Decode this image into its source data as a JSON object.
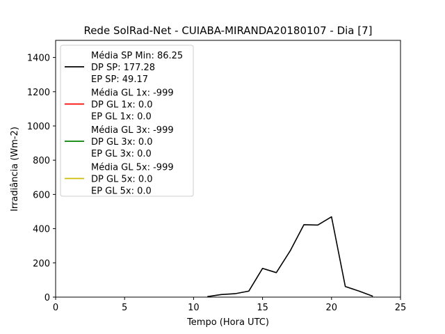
{
  "chart_data": {
    "type": "line",
    "title": "Rede SolRad-Net - CUIABA-MIRANDA20180107 - Dia [7]",
    "xlabel": "Tempo (Hora UTC)",
    "ylabel": "Irradiância (Wm-2)",
    "xlim": [
      0,
      25
    ],
    "ylim": [
      0,
      1500
    ],
    "xticks": [
      0,
      5,
      10,
      15,
      20,
      25
    ],
    "yticks": [
      0,
      200,
      400,
      600,
      800,
      1000,
      1200,
      1400
    ],
    "grid": false,
    "legend_position": "top-left",
    "series": [
      {
        "color": "#000000",
        "legend": [
          "Média SP Min: 86.25",
          "DP SP: 177.28",
          "EP SP: 49.17"
        ],
        "x": [
          11,
          12,
          13,
          14,
          15,
          16,
          17,
          18,
          19,
          20,
          21,
          22,
          23
        ],
        "y": [
          3,
          15,
          20,
          35,
          168,
          143,
          270,
          423,
          421,
          469,
          62,
          35,
          5
        ]
      },
      {
        "color": "#ff0000",
        "legend": [
          "Média GL 1x: -999",
          "DP GL 1x: 0.0",
          "EP GL 1x: 0.0"
        ],
        "x": [],
        "y": []
      },
      {
        "color": "#008000",
        "legend": [
          "Média GL 3x: -999",
          "DP GL 3x: 0.0",
          "EP GL 3x: 0.0"
        ],
        "x": [],
        "y": []
      },
      {
        "color": "#ccbb00",
        "legend": [
          "Média GL 5x: -999",
          "DP GL 5x: 0.0",
          "EP GL 5x: 0.0"
        ],
        "x": [],
        "y": []
      }
    ]
  }
}
